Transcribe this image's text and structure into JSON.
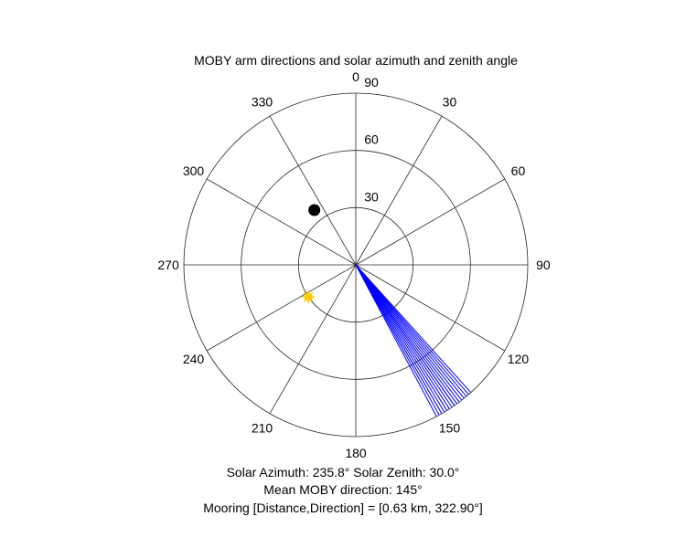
{
  "chart_data": {
    "type": "polar",
    "title": "MOBY arm directions and solar azimuth and zenith angle",
    "angular_axis": {
      "zero_location": "top",
      "direction": "clockwise",
      "tick_values": [
        0,
        30,
        60,
        90,
        120,
        150,
        180,
        210,
        240,
        270,
        300,
        330
      ],
      "tick_labels": [
        "0",
        "30",
        "60",
        "90",
        "120",
        "150",
        "180",
        "210",
        "240",
        "270",
        "300",
        "330"
      ]
    },
    "radial_axis": {
      "range": [
        0,
        90
      ],
      "tick_values": [
        30,
        60,
        90
      ],
      "tick_labels": [
        "30",
        "60",
        "90"
      ]
    },
    "grid": true,
    "series": [
      {
        "kind": "lines",
        "color": "#0000ff",
        "radius": 90,
        "angles_deg": [
          138,
          139,
          140,
          141,
          142,
          143,
          144,
          145,
          145,
          146,
          147,
          148,
          149,
          150,
          151,
          152
        ]
      },
      {
        "kind": "marker",
        "marker": "filled-circle",
        "color": "#000000",
        "angle_deg": 322.9,
        "radius": 36
      },
      {
        "kind": "marker",
        "marker": "sun",
        "color": "#ffcc00",
        "angle_deg": 235.8,
        "radius": 30
      }
    ]
  },
  "captions": {
    "line1": "Solar Azimuth: 235.8°    Solar Zenith: 30.0°",
    "line2": "Mean MOBY direction: 145°",
    "line3": "Mooring [Distance,Direction] = [0.63 km, 322.90°]"
  }
}
